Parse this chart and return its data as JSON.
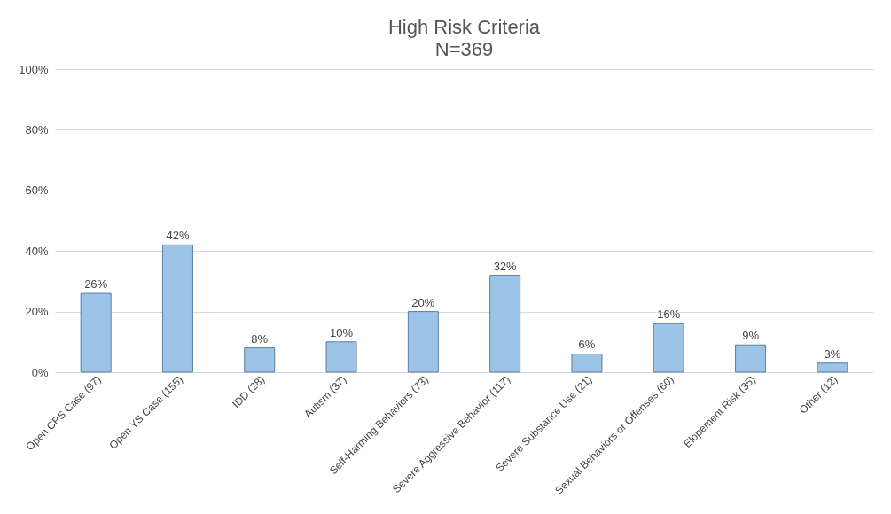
{
  "chart_data": {
    "type": "bar",
    "title": "High Risk Criteria",
    "subtitle": "N=369",
    "categories": [
      "Open CPS Case (97)",
      "Open YS Case (155)",
      "IDD (28)",
      "Autism (37)",
      "Self-Harming Behaviors (73)",
      "Severe Aggressive Behavior (117)",
      "Severe Substance Use (21)",
      "Sexual Behaviors or Offenses (60)",
      "Elopement Risk (35)",
      "Other (12)"
    ],
    "values": [
      26,
      42,
      8,
      10,
      20,
      32,
      6,
      16,
      9,
      3
    ],
    "value_labels": [
      "26%",
      "42%",
      "8%",
      "10%",
      "20%",
      "32%",
      "6%",
      "16%",
      "9%",
      "3%"
    ],
    "color": "#9dc3e6",
    "ylim": [
      0,
      100
    ],
    "yticks": [
      {
        "value": 0,
        "label": "0%"
      },
      {
        "value": 20,
        "label": "20%"
      },
      {
        "value": 40,
        "label": "40%"
      },
      {
        "value": 60,
        "label": "60%"
      },
      {
        "value": 80,
        "label": "80%"
      },
      {
        "value": 100,
        "label": "100%"
      }
    ],
    "grid": "y"
  }
}
